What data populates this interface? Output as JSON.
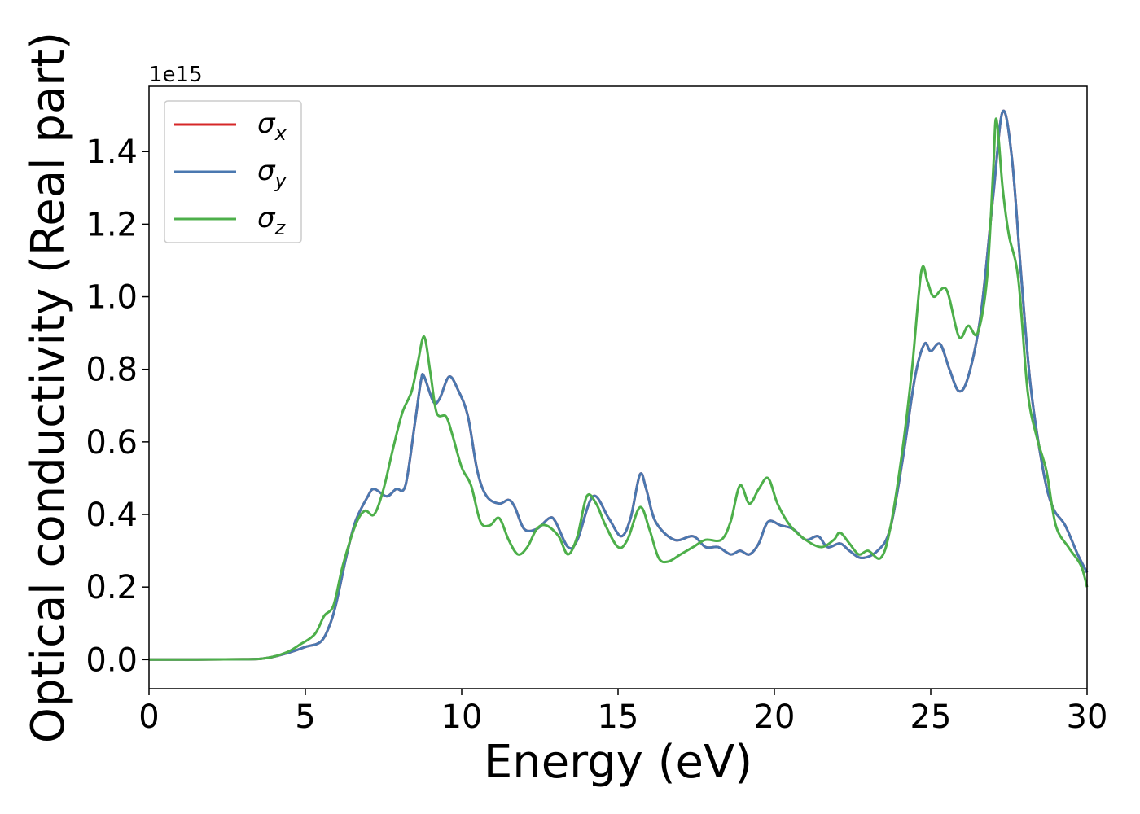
{
  "chart_data": {
    "type": "line",
    "xlabel": "Energy (eV)",
    "ylabel": "Optical conductivity (Real part)",
    "y_offset_label": "1e15",
    "xlim": [
      0,
      30
    ],
    "ylim": [
      -0.08,
      1.58
    ],
    "xticks": [
      0,
      5,
      10,
      15,
      20,
      25,
      30
    ],
    "xtick_labels": [
      "0",
      "5",
      "10",
      "15",
      "20",
      "25",
      "30"
    ],
    "yticks": [
      0.0,
      0.2,
      0.4,
      0.6,
      0.8,
      1.0,
      1.2,
      1.4
    ],
    "ytick_labels": [
      "0.0",
      "0.2",
      "0.4",
      "0.6",
      "0.8",
      "1.0",
      "1.2",
      "1.4"
    ],
    "grid": false,
    "legend_position": "top-left",
    "series": [
      {
        "name": "σ",
        "subscript": "x",
        "color": "#d62728",
        "points": [
          [
            0,
            0
          ],
          [
            3,
            0.001
          ],
          [
            3.8,
            0.005
          ],
          [
            4.5,
            0.02
          ],
          [
            5,
            0.035
          ],
          [
            5.5,
            0.05
          ],
          [
            5.8,
            0.1
          ],
          [
            6,
            0.16
          ],
          [
            6.3,
            0.28
          ],
          [
            6.6,
            0.38
          ],
          [
            7,
            0.45
          ],
          [
            7.2,
            0.47
          ],
          [
            7.6,
            0.45
          ],
          [
            7.9,
            0.47
          ],
          [
            8.2,
            0.48
          ],
          [
            8.5,
            0.65
          ],
          [
            8.7,
            0.77
          ],
          [
            8.8,
            0.78
          ],
          [
            9.1,
            0.71
          ],
          [
            9.3,
            0.72
          ],
          [
            9.6,
            0.78
          ],
          [
            9.9,
            0.74
          ],
          [
            10.2,
            0.67
          ],
          [
            10.5,
            0.52
          ],
          [
            10.8,
            0.45
          ],
          [
            11.2,
            0.43
          ],
          [
            11.5,
            0.44
          ],
          [
            11.7,
            0.42
          ],
          [
            12,
            0.36
          ],
          [
            12.4,
            0.36
          ],
          [
            12.8,
            0.39
          ],
          [
            13,
            0.38
          ],
          [
            13.4,
            0.31
          ],
          [
            13.7,
            0.33
          ],
          [
            14.2,
            0.45
          ],
          [
            14.7,
            0.39
          ],
          [
            15.1,
            0.34
          ],
          [
            15.4,
            0.39
          ],
          [
            15.7,
            0.51
          ],
          [
            15.9,
            0.47
          ],
          [
            16.2,
            0.38
          ],
          [
            16.8,
            0.33
          ],
          [
            17.4,
            0.34
          ],
          [
            17.8,
            0.31
          ],
          [
            18.2,
            0.31
          ],
          [
            18.6,
            0.29
          ],
          [
            18.9,
            0.3
          ],
          [
            19.2,
            0.29
          ],
          [
            19.5,
            0.32
          ],
          [
            19.8,
            0.38
          ],
          [
            20.2,
            0.37
          ],
          [
            20.6,
            0.36
          ],
          [
            21,
            0.33
          ],
          [
            21.4,
            0.34
          ],
          [
            21.7,
            0.31
          ],
          [
            22.1,
            0.32
          ],
          [
            22.4,
            0.3
          ],
          [
            22.8,
            0.28
          ],
          [
            23.3,
            0.3
          ],
          [
            23.7,
            0.36
          ],
          [
            24.1,
            0.55
          ],
          [
            24.5,
            0.78
          ],
          [
            24.8,
            0.87
          ],
          [
            25,
            0.85
          ],
          [
            25.3,
            0.87
          ],
          [
            25.6,
            0.8
          ],
          [
            25.9,
            0.74
          ],
          [
            26.2,
            0.78
          ],
          [
            26.6,
            0.95
          ],
          [
            27,
            1.28
          ],
          [
            27.3,
            1.51
          ],
          [
            27.6,
            1.38
          ],
          [
            27.9,
            1.05
          ],
          [
            28.2,
            0.75
          ],
          [
            28.6,
            0.52
          ],
          [
            28.9,
            0.42
          ],
          [
            29.3,
            0.37
          ],
          [
            29.7,
            0.29
          ],
          [
            30,
            0.24
          ]
        ]
      },
      {
        "name": "σ",
        "subscript": "y",
        "color": "#4a78b0",
        "points": [
          [
            0,
            0
          ],
          [
            3,
            0.001
          ],
          [
            3.8,
            0.005
          ],
          [
            4.5,
            0.02
          ],
          [
            5,
            0.035
          ],
          [
            5.5,
            0.05
          ],
          [
            5.8,
            0.1
          ],
          [
            6,
            0.16
          ],
          [
            6.3,
            0.28
          ],
          [
            6.6,
            0.38
          ],
          [
            7,
            0.45
          ],
          [
            7.2,
            0.47
          ],
          [
            7.6,
            0.45
          ],
          [
            7.9,
            0.47
          ],
          [
            8.2,
            0.48
          ],
          [
            8.5,
            0.65
          ],
          [
            8.7,
            0.77
          ],
          [
            8.8,
            0.78
          ],
          [
            9.1,
            0.71
          ],
          [
            9.3,
            0.72
          ],
          [
            9.6,
            0.78
          ],
          [
            9.9,
            0.74
          ],
          [
            10.2,
            0.67
          ],
          [
            10.5,
            0.52
          ],
          [
            10.8,
            0.45
          ],
          [
            11.2,
            0.43
          ],
          [
            11.5,
            0.44
          ],
          [
            11.7,
            0.42
          ],
          [
            12,
            0.36
          ],
          [
            12.4,
            0.36
          ],
          [
            12.8,
            0.39
          ],
          [
            13,
            0.38
          ],
          [
            13.4,
            0.31
          ],
          [
            13.7,
            0.33
          ],
          [
            14.2,
            0.45
          ],
          [
            14.7,
            0.39
          ],
          [
            15.1,
            0.34
          ],
          [
            15.4,
            0.39
          ],
          [
            15.7,
            0.51
          ],
          [
            15.9,
            0.47
          ],
          [
            16.2,
            0.38
          ],
          [
            16.8,
            0.33
          ],
          [
            17.4,
            0.34
          ],
          [
            17.8,
            0.31
          ],
          [
            18.2,
            0.31
          ],
          [
            18.6,
            0.29
          ],
          [
            18.9,
            0.3
          ],
          [
            19.2,
            0.29
          ],
          [
            19.5,
            0.32
          ],
          [
            19.8,
            0.38
          ],
          [
            20.2,
            0.37
          ],
          [
            20.6,
            0.36
          ],
          [
            21,
            0.33
          ],
          [
            21.4,
            0.34
          ],
          [
            21.7,
            0.31
          ],
          [
            22.1,
            0.32
          ],
          [
            22.4,
            0.3
          ],
          [
            22.8,
            0.28
          ],
          [
            23.3,
            0.3
          ],
          [
            23.7,
            0.36
          ],
          [
            24.1,
            0.55
          ],
          [
            24.5,
            0.78
          ],
          [
            24.8,
            0.87
          ],
          [
            25,
            0.85
          ],
          [
            25.3,
            0.87
          ],
          [
            25.6,
            0.8
          ],
          [
            25.9,
            0.74
          ],
          [
            26.2,
            0.78
          ],
          [
            26.6,
            0.95
          ],
          [
            27,
            1.28
          ],
          [
            27.3,
            1.51
          ],
          [
            27.6,
            1.38
          ],
          [
            27.9,
            1.05
          ],
          [
            28.2,
            0.75
          ],
          [
            28.6,
            0.52
          ],
          [
            28.9,
            0.42
          ],
          [
            29.3,
            0.37
          ],
          [
            29.7,
            0.29
          ],
          [
            30,
            0.24
          ]
        ]
      },
      {
        "name": "σ",
        "subscript": "z",
        "color": "#4daf4a",
        "points": [
          [
            0,
            0
          ],
          [
            3,
            0.001
          ],
          [
            3.8,
            0.005
          ],
          [
            4.4,
            0.02
          ],
          [
            4.8,
            0.04
          ],
          [
            5.3,
            0.07
          ],
          [
            5.6,
            0.12
          ],
          [
            5.9,
            0.15
          ],
          [
            6.2,
            0.26
          ],
          [
            6.6,
            0.37
          ],
          [
            6.9,
            0.41
          ],
          [
            7.2,
            0.4
          ],
          [
            7.5,
            0.47
          ],
          [
            7.8,
            0.58
          ],
          [
            8.1,
            0.68
          ],
          [
            8.4,
            0.74
          ],
          [
            8.6,
            0.82
          ],
          [
            8.8,
            0.89
          ],
          [
            9,
            0.79
          ],
          [
            9.2,
            0.68
          ],
          [
            9.5,
            0.67
          ],
          [
            9.7,
            0.62
          ],
          [
            10,
            0.53
          ],
          [
            10.3,
            0.48
          ],
          [
            10.6,
            0.38
          ],
          [
            10.9,
            0.37
          ],
          [
            11.2,
            0.39
          ],
          [
            11.5,
            0.33
          ],
          [
            11.8,
            0.29
          ],
          [
            12.1,
            0.31
          ],
          [
            12.4,
            0.36
          ],
          [
            12.7,
            0.37
          ],
          [
            13.1,
            0.34
          ],
          [
            13.4,
            0.29
          ],
          [
            13.7,
            0.34
          ],
          [
            14,
            0.45
          ],
          [
            14.3,
            0.43
          ],
          [
            14.6,
            0.37
          ],
          [
            15,
            0.31
          ],
          [
            15.3,
            0.33
          ],
          [
            15.7,
            0.42
          ],
          [
            16,
            0.36
          ],
          [
            16.3,
            0.28
          ],
          [
            16.6,
            0.27
          ],
          [
            17,
            0.29
          ],
          [
            17.4,
            0.31
          ],
          [
            17.8,
            0.33
          ],
          [
            18.3,
            0.33
          ],
          [
            18.6,
            0.38
          ],
          [
            18.9,
            0.48
          ],
          [
            19.2,
            0.43
          ],
          [
            19.5,
            0.47
          ],
          [
            19.8,
            0.5
          ],
          [
            20.1,
            0.43
          ],
          [
            20.5,
            0.37
          ],
          [
            21,
            0.33
          ],
          [
            21.5,
            0.31
          ],
          [
            21.9,
            0.33
          ],
          [
            22.1,
            0.35
          ],
          [
            22.4,
            0.32
          ],
          [
            22.7,
            0.29
          ],
          [
            23,
            0.3
          ],
          [
            23.4,
            0.28
          ],
          [
            23.7,
            0.36
          ],
          [
            24.1,
            0.58
          ],
          [
            24.4,
            0.8
          ],
          [
            24.7,
            1.07
          ],
          [
            24.9,
            1.04
          ],
          [
            25.1,
            1
          ],
          [
            25.5,
            1.02
          ],
          [
            25.9,
            0.89
          ],
          [
            26.2,
            0.92
          ],
          [
            26.5,
            0.9
          ],
          [
            26.8,
            1.05
          ],
          [
            27,
            1.35
          ],
          [
            27.1,
            1.49
          ],
          [
            27.3,
            1.3
          ],
          [
            27.5,
            1.17
          ],
          [
            27.8,
            1.05
          ],
          [
            28.1,
            0.74
          ],
          [
            28.4,
            0.61
          ],
          [
            28.7,
            0.52
          ],
          [
            29,
            0.37
          ],
          [
            29.4,
            0.31
          ],
          [
            29.8,
            0.26
          ],
          [
            30,
            0.2
          ]
        ]
      }
    ]
  }
}
